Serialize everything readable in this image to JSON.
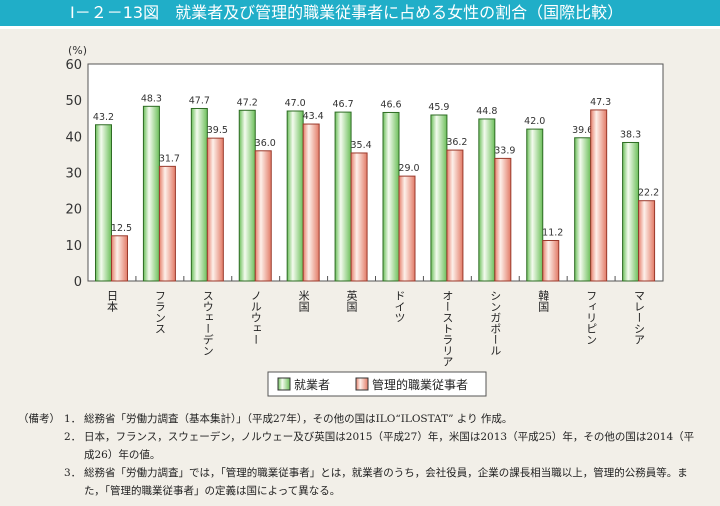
{
  "title": "Ⅰ－２－13図　就業者及び管理的職業従事者に占める女性の割合（国際比較）",
  "chart_data": {
    "type": "bar",
    "title": "就業者及び管理的職業従事者に占める女性の割合（国際比較）",
    "ylabel": "(%)",
    "ylim": [
      0,
      60
    ],
    "yticks": [
      0,
      10,
      20,
      30,
      40,
      50,
      60
    ],
    "grid": false,
    "legend_position": "bottom",
    "categories": [
      "日本",
      "フランス",
      "スウェーデン",
      "ノルウェー",
      "米国",
      "英国",
      "ドイツ",
      "オーストラリア",
      "シンガポール",
      "韓国",
      "フィリピン",
      "マレーシア"
    ],
    "series": [
      {
        "name": "就業者",
        "color": "#7cc96a",
        "values": [
          43.2,
          48.3,
          47.7,
          47.2,
          47.0,
          46.7,
          46.6,
          45.9,
          44.8,
          42.0,
          39.6,
          38.3
        ]
      },
      {
        "name": "管理的職業従事者",
        "color": "#e8806e",
        "values": [
          12.5,
          31.7,
          39.5,
          36.0,
          43.4,
          35.4,
          29.0,
          36.2,
          33.9,
          11.2,
          47.3,
          22.2
        ]
      }
    ]
  },
  "notes": {
    "label": "（備考）",
    "items": [
      {
        "num": "1．",
        "text": "総務省「労働力調査（基本集計）」（平成27年），その他の国はILO“ILOSTAT” より 作成。"
      },
      {
        "num": "2．",
        "text": "日本，フランス，スウェーデン，ノルウェー及び英国は2015（平成27）年，米国は2013（平成25）年，その他の国は2014（平成26）年の値。"
      },
      {
        "num": "3．",
        "text": "総務省「労働力調査」では，「管理的職業従事者」とは，就業者のうち，会社役員，企業の課長相当職以上，管理的公務員等。また，「管理的職業従事者」の定義は国によって異なる。"
      }
    ]
  }
}
